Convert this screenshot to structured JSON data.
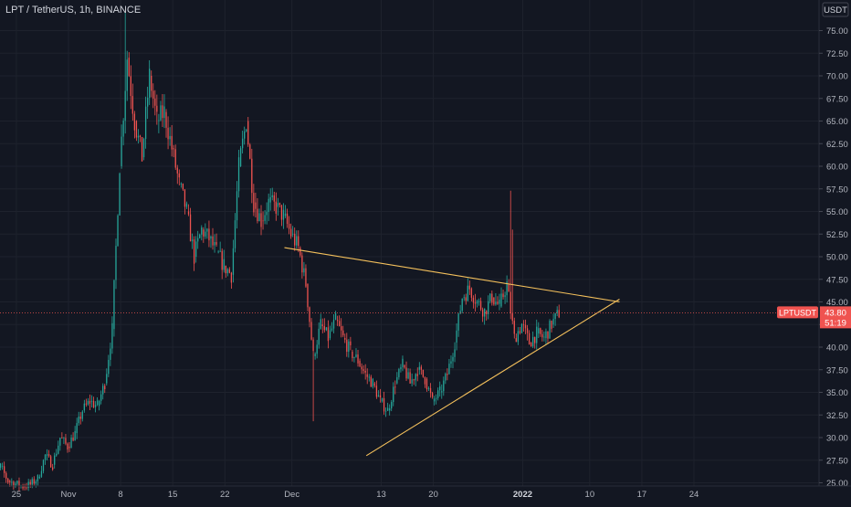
{
  "header": {
    "symbol_title": "LPT / TetherUS, 1h, BINANCE"
  },
  "price_axis": {
    "currency": "USDT"
  },
  "chart_data": {
    "type": "candlestick",
    "symbol": "LPTUSDT",
    "ylim": [
      24.5,
      77.5
    ],
    "y_ticks": [
      "25.00",
      "27.50",
      "30.00",
      "32.50",
      "35.00",
      "37.50",
      "40.00",
      "42.50",
      "45.00",
      "47.50",
      "50.00",
      "52.50",
      "55.00",
      "57.50",
      "60.00",
      "62.50",
      "65.00",
      "67.50",
      "70.00",
      "72.50",
      "75.00"
    ],
    "x_ticks": [
      "25",
      "Nov",
      "8",
      "15",
      "22",
      "Dec",
      "13",
      "20",
      "2022",
      "10",
      "17",
      "24"
    ],
    "last_price_label": "LPTUSDT",
    "last_price": "43.80",
    "countdown": "51:19",
    "colors": {
      "background": "#131722",
      "up": "#26a69a",
      "down": "#ef5350",
      "trendline": "#f5c15c",
      "price_line": "#ef5350",
      "grid": "#1e222d",
      "axis_text": "#b2b5be"
    },
    "price_path": [
      [
        "2021-10-21",
        26.5
      ],
      [
        "2021-10-22",
        25.5
      ],
      [
        "2021-10-23",
        26.8
      ],
      [
        "2021-10-24",
        25.2
      ],
      [
        "2021-10-25",
        24.9
      ],
      [
        "2021-10-26",
        24.6
      ],
      [
        "2021-10-27",
        24.8
      ],
      [
        "2021-10-28",
        25.5
      ],
      [
        "2021-10-29",
        28.0
      ],
      [
        "2021-10-30",
        27.0
      ],
      [
        "2021-10-31",
        30.0
      ],
      [
        "2021-11-01",
        29.0
      ],
      [
        "2021-11-02",
        30.5
      ],
      [
        "2021-11-03",
        33.0
      ],
      [
        "2021-11-04",
        34.0
      ],
      [
        "2021-11-05",
        33.5
      ],
      [
        "2021-11-06",
        36.0
      ],
      [
        "2021-11-07",
        42.0
      ],
      [
        "2021-11-08",
        60.0
      ],
      [
        "2021-11-09",
        72.0
      ],
      [
        "2021-11-10",
        65.0
      ],
      [
        "2021-11-11",
        61.0
      ],
      [
        "2021-11-12",
        70.0
      ],
      [
        "2021-11-13",
        65.0
      ],
      [
        "2021-11-14",
        66.0
      ],
      [
        "2021-11-15",
        62.0
      ],
      [
        "2021-11-16",
        58.0
      ],
      [
        "2021-11-17",
        55.0
      ],
      [
        "2021-11-18",
        50.0
      ],
      [
        "2021-11-19",
        53.0
      ],
      [
        "2021-11-20",
        52.0
      ],
      [
        "2021-11-21",
        50.5
      ],
      [
        "2021-11-22",
        49.0
      ],
      [
        "2021-11-23",
        48.0
      ],
      [
        "2021-11-24",
        60.0
      ],
      [
        "2021-11-25",
        65.0
      ],
      [
        "2021-11-26",
        56.0
      ],
      [
        "2021-11-27",
        54.0
      ],
      [
        "2021-11-28",
        56.0
      ],
      [
        "2021-11-29",
        55.5
      ],
      [
        "2021-11-30",
        54.5
      ],
      [
        "2021-12-01",
        52.5
      ],
      [
        "2021-12-02",
        51.0
      ],
      [
        "2021-12-03",
        47.0
      ],
      [
        "2021-12-04",
        39.0
      ],
      [
        "2021-12-05",
        42.5
      ],
      [
        "2021-12-06",
        41.0
      ],
      [
        "2021-12-07",
        43.0
      ],
      [
        "2021-12-08",
        41.0
      ],
      [
        "2021-12-09",
        39.5
      ],
      [
        "2021-12-10",
        38.5
      ],
      [
        "2021-12-11",
        37.0
      ],
      [
        "2021-12-12",
        36.0
      ],
      [
        "2021-12-13",
        34.0
      ],
      [
        "2021-12-14",
        33.0
      ],
      [
        "2021-12-15",
        36.0
      ],
      [
        "2021-12-16",
        38.0
      ],
      [
        "2021-12-17",
        36.0
      ],
      [
        "2021-12-18",
        37.5
      ],
      [
        "2021-12-19",
        36.5
      ],
      [
        "2021-12-20",
        34.0
      ],
      [
        "2021-12-21",
        35.0
      ],
      [
        "2021-12-22",
        37.0
      ],
      [
        "2021-12-23",
        40.5
      ],
      [
        "2021-12-24",
        45.5
      ],
      [
        "2021-12-25",
        46.5
      ],
      [
        "2021-12-26",
        45.0
      ],
      [
        "2021-12-27",
        44.0
      ],
      [
        "2021-12-28",
        45.5
      ],
      [
        "2021-12-29",
        44.5
      ],
      [
        "2021-12-30",
        47.0
      ],
      [
        "2021-12-31",
        41.0
      ],
      [
        "2022-01-01",
        42.5
      ],
      [
        "2022-01-02",
        40.5
      ],
      [
        "2022-01-03",
        41.5
      ],
      [
        "2022-01-04",
        41.0
      ],
      [
        "2022-01-05",
        42.5
      ],
      [
        "2022-01-06",
        43.8
      ]
    ],
    "trendlines": [
      {
        "name": "resistance",
        "from": [
          "2021-11-30",
          51.0
        ],
        "to": [
          "2022-01-14",
          45.0
        ]
      },
      {
        "name": "support",
        "from": [
          "2021-12-11",
          28.0
        ],
        "to": [
          "2022-01-14",
          45.3
        ]
      }
    ]
  }
}
